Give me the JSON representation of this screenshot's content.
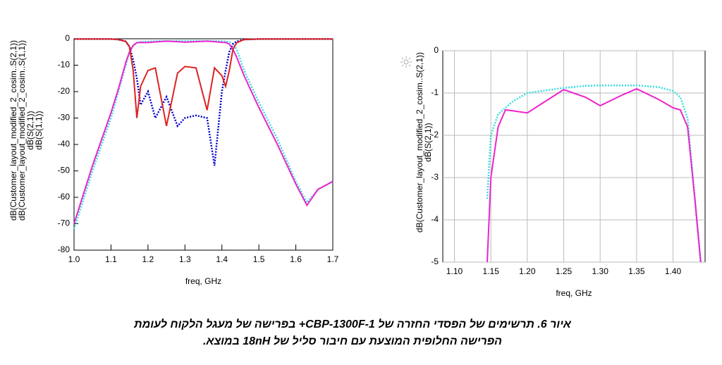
{
  "chart_data": [
    {
      "type": "line",
      "x_label": "freq, GHz",
      "grid": false,
      "xlim": [
        1.0,
        1.7
      ],
      "xticks": [
        {
          "value": 1.0,
          "label": "1.0"
        },
        1.1,
        1.2,
        1.3,
        1.4,
        1.5,
        1.6,
        1.7
      ],
      "ylim": [
        -80,
        0
      ],
      "yticks": [
        0,
        -10,
        -20,
        -30,
        -40,
        -50,
        -60,
        -70,
        -80
      ],
      "x": [
        1.0,
        1.05,
        1.1,
        1.12,
        1.14,
        1.15,
        1.16,
        1.17,
        1.18,
        1.2,
        1.22,
        1.25,
        1.28,
        1.3,
        1.33,
        1.36,
        1.38,
        1.4,
        1.41,
        1.42,
        1.43,
        1.44,
        1.46,
        1.5,
        1.55,
        1.6,
        1.63,
        1.66,
        1.7
      ],
      "series": [
        {
          "name": "dB(Customer_layout_modified_2_cosim..S(2,1))",
          "color": "#33dddd",
          "line_style": "dotted",
          "values": [
            -72,
            -50,
            -30,
            -20,
            -10,
            -5,
            -2.5,
            -1.5,
            -1.2,
            -1,
            -0.9,
            -0.8,
            -0.8,
            -0.8,
            -0.8,
            -0.8,
            -0.8,
            -0.9,
            -1,
            -1.2,
            -2,
            -4,
            -12,
            -24,
            -38,
            -54,
            -62,
            -57,
            -54
          ]
        },
        {
          "name": "dB(Customer_layout_modified_2_cosim..S(1,1))",
          "color": "#0000cc",
          "line_style": "dotted",
          "values": [
            -0.1,
            -0.1,
            -0.1,
            -0.3,
            -1,
            -3,
            -8,
            -15,
            -25,
            -20,
            -30,
            -22,
            -33,
            -30,
            -29,
            -30,
            -48,
            -20,
            -12,
            -5,
            -2,
            -1,
            -0.3,
            -0.1,
            -0.1,
            -0.1,
            -0.1,
            -0.1,
            -0.1
          ]
        },
        {
          "name": "dB(S(2,1))",
          "color": "#ee22cc",
          "line_style": "solid",
          "values": [
            -70,
            -48,
            -28,
            -19,
            -9,
            -5,
            -2.5,
            -1.5,
            -1.4,
            -1.45,
            -1.2,
            -0.9,
            -1.1,
            -1.3,
            -1.1,
            -0.9,
            -1.1,
            -1.35,
            -1.4,
            -2,
            -4,
            -7,
            -14,
            -26,
            -40,
            -55,
            -63,
            -57,
            -54
          ]
        },
        {
          "name": "dB(S(1,1))",
          "color": "#dd2222",
          "line_style": "solid",
          "values": [
            -0.1,
            -0.1,
            -0.1,
            -0.3,
            -1,
            -3,
            -12,
            -30,
            -18,
            -12,
            -11,
            -33,
            -13,
            -10.5,
            -11,
            -27,
            -11,
            -14,
            -18,
            -12,
            -4,
            -1.5,
            -0.3,
            -0.1,
            -0.1,
            -0.1,
            -0.1,
            -0.1,
            -0.1
          ]
        }
      ]
    },
    {
      "type": "line",
      "x_label": "freq, GHz",
      "grid": true,
      "xlim": [
        1.084,
        1.444
      ],
      "xticks": [
        {
          "value": 1.1,
          "label": "1.10"
        },
        1.15,
        {
          "value": 1.2,
          "label": "1.20"
        },
        1.25,
        {
          "value": 1.3,
          "label": "1.30"
        },
        1.35,
        {
          "value": 1.4,
          "label": "1.40"
        }
      ],
      "ylim": [
        -5,
        0
      ],
      "yticks": [
        0,
        -1,
        -2,
        -3,
        -4,
        -5
      ],
      "x": [
        1.145,
        1.15,
        1.16,
        1.17,
        1.18,
        1.2,
        1.22,
        1.25,
        1.28,
        1.3,
        1.33,
        1.35,
        1.38,
        1.4,
        1.41,
        1.42,
        1.43,
        1.438
      ],
      "series": [
        {
          "name": "dB(Customer_layout_modified_2_cosim..S(2,1))",
          "color": "#33dddd",
          "line_style": "dotted",
          "values": [
            -3.5,
            -2,
            -1.5,
            -1.35,
            -1.2,
            -1,
            -0.95,
            -0.88,
            -0.83,
            -0.82,
            -0.82,
            -0.82,
            -0.86,
            -0.95,
            -1.1,
            -1.6,
            -3.5,
            -5
          ]
        },
        {
          "name": "dB(S(2,1))",
          "color": "#ee22cc",
          "line_style": "solid",
          "values": [
            -5,
            -3,
            -1.8,
            -1.4,
            -1.42,
            -1.47,
            -1.25,
            -0.92,
            -1.1,
            -1.3,
            -1.05,
            -0.9,
            -1.15,
            -1.35,
            -1.4,
            -1.8,
            -3.5,
            -5
          ]
        }
      ]
    }
  ],
  "caption": {
    "lines": [
      "איור 6.  תרשימים של הפסדי החזרה של  CBP-1300F-1+ בפרישה של מעגל הלקוח לעומת",
      "הפרישה החלופית המוצעת עם חיבור סליל של 18nH במוצא."
    ]
  }
}
